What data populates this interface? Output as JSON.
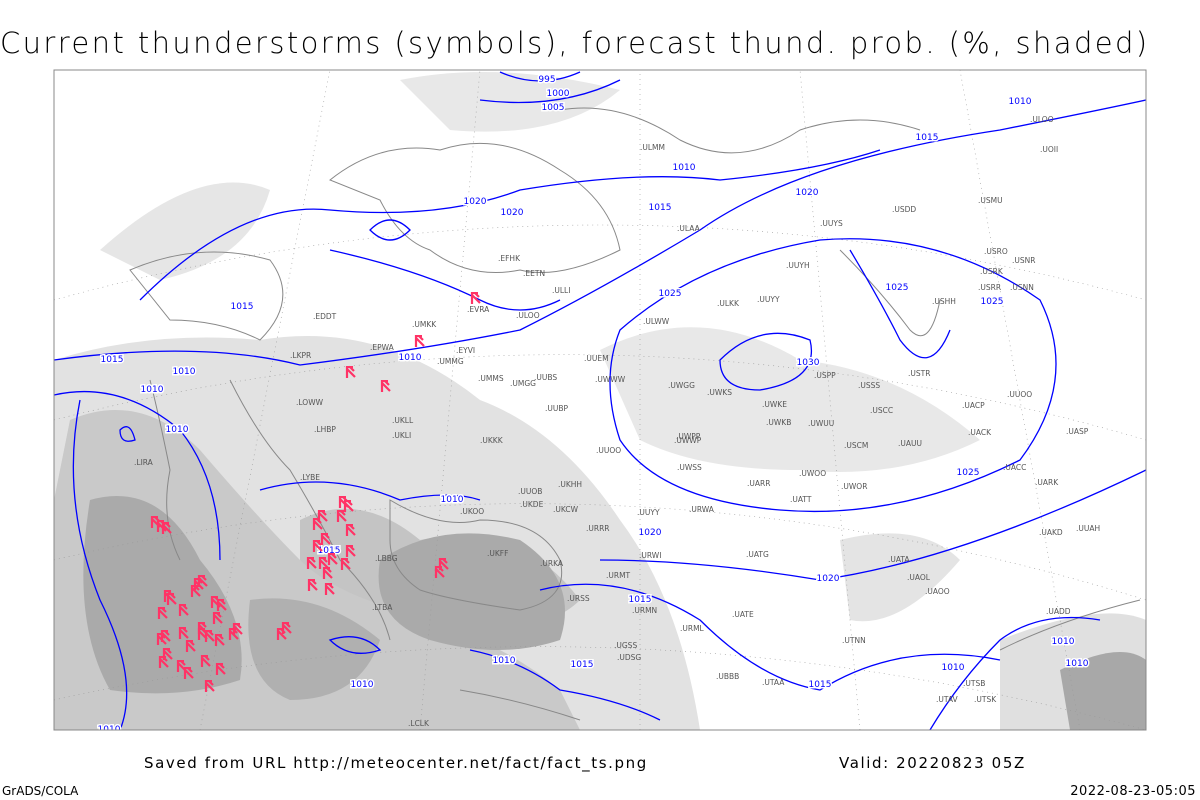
{
  "title": "Current thunderstorms (symbols), forecast thund. prob. (%, shaded)",
  "footer": {
    "saved_from": "Saved from URL http://meteocenter.net/fact/fact_ts.png",
    "valid": "Valid: 20220823 05Z",
    "software": "GrADS/COLA",
    "timestamp": "2022-08-23-05:05"
  },
  "colors": {
    "isobar": "#0000ff",
    "storm_symbol": "#ff3366",
    "coast": "#888888",
    "shade_light": "#dcdcdc",
    "shade_mid": "#c4c4c4",
    "shade_dark": "#a8a8a8"
  },
  "legend_symbols": {
    "thunderstorm": "thunderstorm-flag-icon"
  },
  "isobar_labels": [
    "995",
    "1000",
    "1005",
    "1010",
    "1015",
    "1020",
    "1020",
    "1020",
    "1015",
    "1010",
    "1015",
    "1015",
    "1010",
    "1010",
    "1025",
    "1025",
    "1025",
    "1030",
    "1025",
    "1020",
    "1020",
    "1015",
    "1010",
    "1010",
    "1010",
    "1015",
    "1015",
    "1010",
    "1015",
    "1010",
    "1010",
    "1010",
    "1010",
    "1010"
  ],
  "stations": [
    "ULMM",
    "ULOO",
    "UOII",
    "ULAA",
    "UUYS",
    "USDD",
    "USMU",
    "UUYH",
    "ULKK",
    "UUYY",
    "USRO",
    "USRK",
    "USNR",
    "USRR",
    "USNN",
    "USHH",
    "EFHK",
    "EETN",
    "ULLI",
    "ULWW",
    "EVRA",
    "ULOO",
    "UMKK",
    "EDDT",
    "EPWA",
    "EYVI",
    "UMMG",
    "LKPR",
    "UMMS",
    "UMGG",
    "UUBS",
    "UUEM",
    "UWWW",
    "UWGG",
    "UWKS",
    "USPP",
    "USSS",
    "USTR",
    "UUOO",
    "LOWW",
    "UKLL",
    "UKLI",
    "LHBP",
    "UWKE",
    "USCC",
    "UACP",
    "UWKB",
    "UWUU",
    "UUBP",
    "UKKK",
    "UWWP",
    "USCM",
    "UAUU",
    "UACK",
    "UASP",
    "LIRA",
    "UUOO",
    "UWPP",
    "LYBE",
    "UKHH",
    "UUOB",
    "UWSS",
    "UARR",
    "UWOO",
    "UWOR",
    "UACC",
    "UARK",
    "UATT",
    "UKOO",
    "UKDE",
    "UKCW",
    "URWA",
    "UUYY",
    "URRR",
    "UKFF",
    "UAKD",
    "UUAH",
    "LBBG",
    "URKA",
    "UATG",
    "URWI",
    "UATA",
    "UAOL",
    "URMT",
    "URSS",
    "URMN",
    "UATE",
    "LTBA",
    "UGSS",
    "URML",
    "UTNN",
    "UDSG",
    "UBBB",
    "UTAA",
    "UTSB",
    "UTAV",
    "UTSK",
    "LCLK",
    "UAOO",
    "UADD"
  ]
}
